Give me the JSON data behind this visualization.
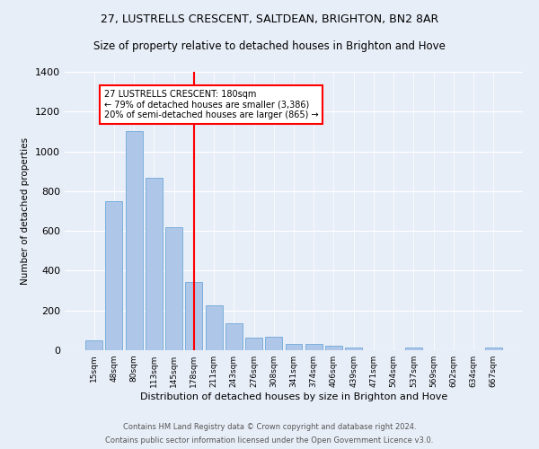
{
  "title": "27, LUSTRELLS CRESCENT, SALTDEAN, BRIGHTON, BN2 8AR",
  "subtitle": "Size of property relative to detached houses in Brighton and Hove",
  "xlabel": "Distribution of detached houses by size in Brighton and Hove",
  "ylabel": "Number of detached properties",
  "footer1": "Contains HM Land Registry data © Crown copyright and database right 2024.",
  "footer2": "Contains public sector information licensed under the Open Government Licence v3.0.",
  "categories": [
    "15sqm",
    "48sqm",
    "80sqm",
    "113sqm",
    "145sqm",
    "178sqm",
    "211sqm",
    "243sqm",
    "276sqm",
    "308sqm",
    "341sqm",
    "374sqm",
    "406sqm",
    "439sqm",
    "471sqm",
    "504sqm",
    "537sqm",
    "569sqm",
    "602sqm",
    "634sqm",
    "667sqm"
  ],
  "values": [
    50,
    750,
    1100,
    865,
    620,
    345,
    225,
    135,
    65,
    70,
    30,
    30,
    22,
    12,
    0,
    0,
    12,
    0,
    0,
    0,
    12
  ],
  "bar_color": "#aec6e8",
  "bar_edge_color": "#5a9fd4",
  "vline_x_index": 5,
  "vline_color": "red",
  "annotation_text": "27 LUSTRELLS CRESCENT: 180sqm\n← 79% of detached houses are smaller (3,386)\n20% of semi-detached houses are larger (865) →",
  "annotation_box_color": "red",
  "annotation_text_color": "black",
  "annotation_facecolor": "white",
  "ylim": [
    0,
    1400
  ],
  "yticks": [
    0,
    200,
    400,
    600,
    800,
    1000,
    1200,
    1400
  ],
  "bg_color": "#e8eef8",
  "plot_bg_color": "#e8eef8",
  "grid_color": "white",
  "title_fontsize": 9,
  "subtitle_fontsize": 8.5
}
